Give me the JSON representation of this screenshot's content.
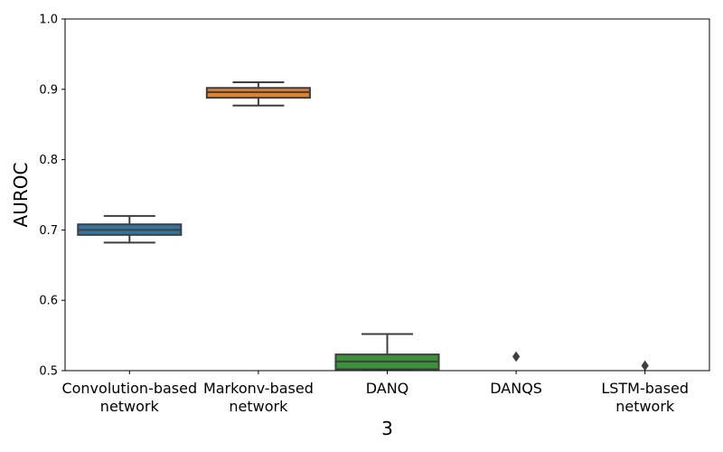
{
  "chart_data": {
    "type": "box",
    "title": "",
    "xlabel": "3",
    "ylabel": "AUROC",
    "ylim": [
      0.5,
      1.0
    ],
    "yticks": [
      "0.5",
      "0.6",
      "0.7",
      "0.8",
      "0.9",
      "1.0"
    ],
    "grid": false,
    "categories": [
      [
        "Convolution-based",
        "network"
      ],
      [
        "Markonv-based",
        "network"
      ],
      [
        "DANQ"
      ],
      [
        "DANQS"
      ],
      [
        "LSTM-based",
        "network"
      ]
    ],
    "boxes": [
      {
        "min": 0.682,
        "q1": 0.693,
        "median": 0.7,
        "q3": 0.708,
        "max": 0.72,
        "outliers": [],
        "color": "#3274a1"
      },
      {
        "min": 0.877,
        "q1": 0.888,
        "median": 0.896,
        "q3": 0.902,
        "max": 0.91,
        "outliers": [],
        "color": "#e1812c"
      },
      {
        "min": 0.501,
        "q1": 0.502,
        "median": 0.513,
        "q3": 0.523,
        "max": 0.552,
        "outliers": [],
        "color": "#3a923a"
      },
      {
        "min": null,
        "q1": null,
        "median": null,
        "q3": null,
        "max": null,
        "outliers": [
          0.52
        ],
        "color": "#c03d3e"
      },
      {
        "min": null,
        "q1": null,
        "median": null,
        "q3": null,
        "max": null,
        "outliers": [
          0.507
        ],
        "color": "#9372b2"
      }
    ]
  }
}
